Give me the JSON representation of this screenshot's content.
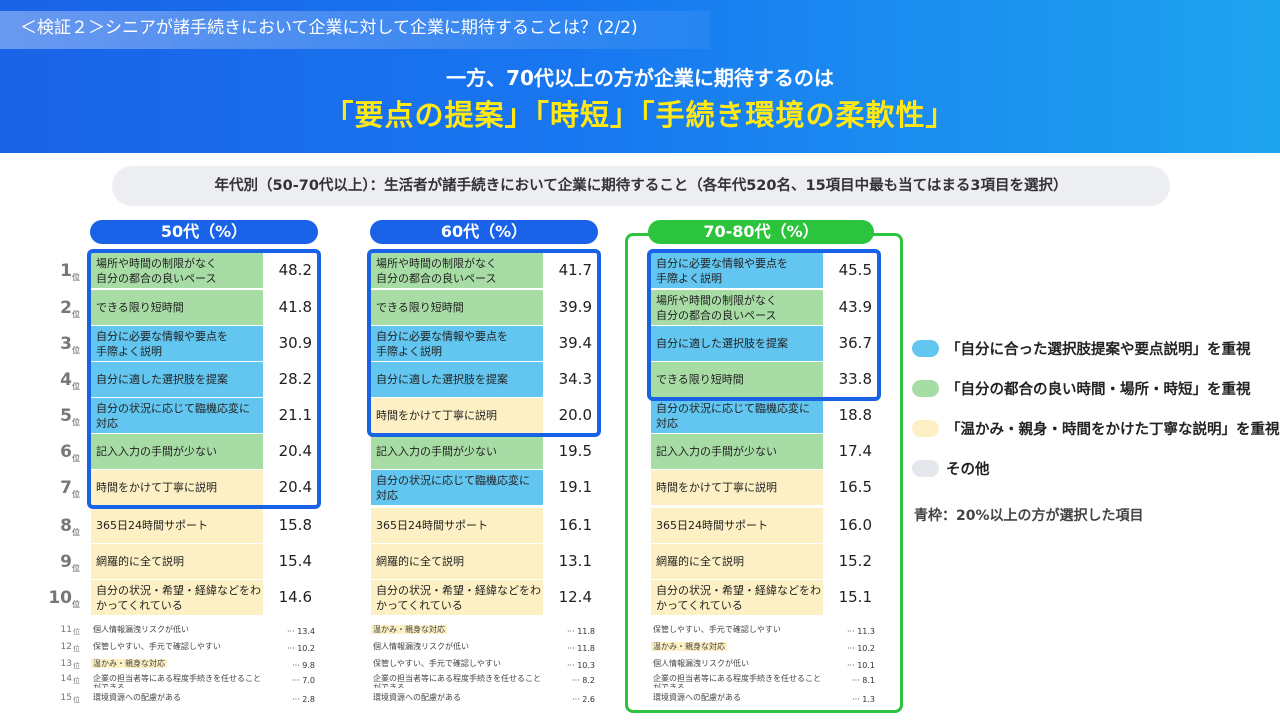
{
  "subheader": "＜検証２＞シニアが諸手続きにおいて企業に対して企業に期待することは？(2/2)",
  "headline_line1": "一方、70代以上の方が企業に期待するのは",
  "headline_line2": "「要点の提案」「時短」「手続き環境の柔軟性」",
  "survey_title": "年代別（50-70代以上）：生活者が諸手続きにおいて企業に期待すること（各年代520名、15項目中最も当てはまる3項目を選択）",
  "rank_unit": "位",
  "ranks": [
    "1",
    "2",
    "3",
    "4",
    "5",
    "6",
    "7",
    "8",
    "9",
    "10",
    "11",
    "12",
    "13",
    "14",
    "15"
  ],
  "colors": {
    "blue_fill": "#62c6f0",
    "green_fill": "#a7dca5",
    "yellow_fill": "#fdf0c4",
    "gray_fill": "#e4e7ec",
    "frame_blue": "#1862e6",
    "frame_green": "#2cc43c",
    "header_blue": "#1a63e8"
  },
  "legend": [
    {
      "label": "「自分に合った選択肢提案や要点説明」を重視",
      "color": "blue"
    },
    {
      "label": "「自分の都合の良い時間・場所・時短」を重視",
      "color": "green"
    },
    {
      "label": "「温かみ・親身・時間をかけた丁寧な説明」を重視",
      "color": "yellow"
    },
    {
      "label": "その他",
      "color": "gray"
    }
  ],
  "legend_note": "青枠：20%以上の方が選択した項目",
  "chart_data": {
    "type": "table",
    "unit": "%",
    "columns": [
      {
        "label": "50代（%）",
        "highlight": false,
        "top10": [
          {
            "label": "場所や時間の制限がなく\n自分の都合の良いペース",
            "value": "48.2",
            "color": "green"
          },
          {
            "label": "できる限り短時間",
            "value": "41.8",
            "color": "green"
          },
          {
            "label": "自分に必要な情報や要点を\n手際よく説明",
            "value": "30.9",
            "color": "blue"
          },
          {
            "label": "自分に適した選択肢を提案",
            "value": "28.2",
            "color": "blue"
          },
          {
            "label": "自分の状況に応じて臨機応変に\n対応",
            "value": "21.1",
            "color": "blue"
          },
          {
            "label": "記入入力の手間が少ない",
            "value": "20.4",
            "color": "green"
          },
          {
            "label": "時間をかけて丁寧に説明",
            "value": "20.4",
            "color": "yellow"
          },
          {
            "label": "365日24時間サポート",
            "value": "15.8",
            "color": "yellow"
          },
          {
            "label": "網羅的に全て説明",
            "value": "15.4",
            "color": "yellow"
          },
          {
            "label": "自分の状況・希望・経緯などをわ\nかってくれている",
            "value": "14.6",
            "color": "yellow"
          }
        ],
        "rest": [
          {
            "label": "個人情報漏洩リスクが低い",
            "value": "13.4",
            "highlight": false
          },
          {
            "label": "保管しやすい、手元で確認しやすい",
            "value": "10.2",
            "highlight": false
          },
          {
            "label": "温かみ・親身な対応",
            "value": "9.8",
            "highlight": true
          },
          {
            "label": "企業の担当者等にある程度手続きを任せることができる",
            "value": "7.0",
            "highlight": false
          },
          {
            "label": "環境資源への配慮がある",
            "value": "2.8",
            "highlight": false
          }
        ],
        "blue_frame_rows": 7
      },
      {
        "label": "60代（%）",
        "highlight": false,
        "top10": [
          {
            "label": "場所や時間の制限がなく\n自分の都合の良いペース",
            "value": "41.7",
            "color": "green"
          },
          {
            "label": "できる限り短時間",
            "value": "39.9",
            "color": "green"
          },
          {
            "label": "自分に必要な情報や要点を\n手際よく説明",
            "value": "39.4",
            "color": "blue"
          },
          {
            "label": "自分に適した選択肢を提案",
            "value": "34.3",
            "color": "blue"
          },
          {
            "label": "時間をかけて丁寧に説明",
            "value": "20.0",
            "color": "yellow"
          },
          {
            "label": "記入入力の手間が少ない",
            "value": "19.5",
            "color": "green"
          },
          {
            "label": "自分の状況に応じて臨機応変に\n対応",
            "value": "19.1",
            "color": "blue"
          },
          {
            "label": "365日24時間サポート",
            "value": "16.1",
            "color": "yellow"
          },
          {
            "label": "網羅的に全て説明",
            "value": "13.1",
            "color": "yellow"
          },
          {
            "label": "自分の状況・希望・経緯などをわ\nかってくれている",
            "value": "12.4",
            "color": "yellow"
          }
        ],
        "rest": [
          {
            "label": "温かみ・親身な対応",
            "value": "11.8",
            "highlight": true
          },
          {
            "label": "個人情報漏洩リスクが低い",
            "value": "11.8",
            "highlight": false
          },
          {
            "label": "保管しやすい、手元で確認しやすい",
            "value": "10.3",
            "highlight": false
          },
          {
            "label": "企業の担当者等にある程度手続きを任せることができる",
            "value": "8.2",
            "highlight": false
          },
          {
            "label": "環境資源への配慮がある",
            "value": "2.6",
            "highlight": false
          }
        ],
        "blue_frame_rows": 5
      },
      {
        "label": "70-80代（%）",
        "highlight": true,
        "top10": [
          {
            "label": "自分に必要な情報や要点を\n手際よく説明",
            "value": "45.5",
            "color": "blue"
          },
          {
            "label": "場所や時間の制限がなく\n自分の都合の良いペース",
            "value": "43.9",
            "color": "green"
          },
          {
            "label": "自分に適した選択肢を提案",
            "value": "36.7",
            "color": "blue"
          },
          {
            "label": "できる限り短時間",
            "value": "33.8",
            "color": "green"
          },
          {
            "label": "自分の状況に応じて臨機応変に\n対応",
            "value": "18.8",
            "color": "blue"
          },
          {
            "label": "記入入力の手間が少ない",
            "value": "17.4",
            "color": "green"
          },
          {
            "label": "時間をかけて丁寧に説明",
            "value": "16.5",
            "color": "yellow"
          },
          {
            "label": "365日24時間サポート",
            "value": "16.0",
            "color": "yellow"
          },
          {
            "label": "網羅的に全て説明",
            "value": "15.2",
            "color": "yellow"
          },
          {
            "label": "自分の状況・希望・経緯などをわ\nかってくれている",
            "value": "15.1",
            "color": "yellow"
          }
        ],
        "rest": [
          {
            "label": "保管しやすい、手元で確認しやすい",
            "value": "11.3",
            "highlight": false
          },
          {
            "label": "温かみ・親身な対応",
            "value": "10.2",
            "highlight": true
          },
          {
            "label": "個人情報漏洩リスクが低い",
            "value": "10.1",
            "highlight": false
          },
          {
            "label": "企業の担当者等にある程度手続きを任せることができる",
            "value": "8.1",
            "highlight": false
          },
          {
            "label": "環境資源への配慮がある",
            "value": "1.3",
            "highlight": false
          }
        ],
        "blue_frame_rows": 4
      }
    ]
  }
}
